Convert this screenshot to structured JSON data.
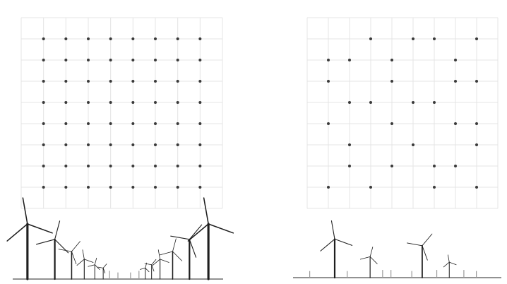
{
  "colors": {
    "background": "#ffffff",
    "grid": "#e4e4e4",
    "dot": "#3a3a3a",
    "turbine": "#1e1e1e",
    "ground": "#6f6f6f"
  },
  "panels": [
    {
      "id": "regular-layout",
      "grid_size": 9,
      "occupied_cells": [
        [
          1,
          1
        ],
        [
          2,
          1
        ],
        [
          3,
          1
        ],
        [
          4,
          1
        ],
        [
          5,
          1
        ],
        [
          6,
          1
        ],
        [
          7,
          1
        ],
        [
          8,
          1
        ],
        [
          1,
          2
        ],
        [
          2,
          2
        ],
        [
          3,
          2
        ],
        [
          4,
          2
        ],
        [
          5,
          2
        ],
        [
          6,
          2
        ],
        [
          7,
          2
        ],
        [
          8,
          2
        ],
        [
          1,
          3
        ],
        [
          2,
          3
        ],
        [
          3,
          3
        ],
        [
          4,
          3
        ],
        [
          5,
          3
        ],
        [
          6,
          3
        ],
        [
          7,
          3
        ],
        [
          8,
          3
        ],
        [
          1,
          4
        ],
        [
          2,
          4
        ],
        [
          3,
          4
        ],
        [
          4,
          4
        ],
        [
          5,
          4
        ],
        [
          6,
          4
        ],
        [
          7,
          4
        ],
        [
          8,
          4
        ],
        [
          1,
          5
        ],
        [
          2,
          5
        ],
        [
          3,
          5
        ],
        [
          4,
          5
        ],
        [
          5,
          5
        ],
        [
          6,
          5
        ],
        [
          7,
          5
        ],
        [
          8,
          5
        ],
        [
          1,
          6
        ],
        [
          2,
          6
        ],
        [
          3,
          6
        ],
        [
          4,
          6
        ],
        [
          5,
          6
        ],
        [
          6,
          6
        ],
        [
          7,
          6
        ],
        [
          8,
          6
        ],
        [
          1,
          7
        ],
        [
          2,
          7
        ],
        [
          3,
          7
        ],
        [
          4,
          7
        ],
        [
          5,
          7
        ],
        [
          6,
          7
        ],
        [
          7,
          7
        ],
        [
          8,
          7
        ],
        [
          1,
          8
        ],
        [
          2,
          8
        ],
        [
          3,
          8
        ],
        [
          4,
          8
        ],
        [
          5,
          8
        ],
        [
          6,
          8
        ],
        [
          7,
          8
        ],
        [
          8,
          8
        ]
      ],
      "turbine_count": 64
    },
    {
      "id": "sparse-layout",
      "grid_size": 9,
      "occupied_cells": [
        [
          3,
          1
        ],
        [
          5,
          1
        ],
        [
          6,
          1
        ],
        [
          8,
          1
        ],
        [
          1,
          2
        ],
        [
          2,
          2
        ],
        [
          4,
          2
        ],
        [
          7,
          2
        ],
        [
          1,
          3
        ],
        [
          4,
          3
        ],
        [
          7,
          3
        ],
        [
          8,
          3
        ],
        [
          2,
          4
        ],
        [
          3,
          4
        ],
        [
          5,
          4
        ],
        [
          6,
          4
        ],
        [
          1,
          5
        ],
        [
          4,
          5
        ],
        [
          7,
          5
        ],
        [
          8,
          5
        ],
        [
          2,
          6
        ],
        [
          5,
          6
        ],
        [
          8,
          6
        ],
        [
          2,
          7
        ],
        [
          4,
          7
        ],
        [
          6,
          7
        ],
        [
          7,
          7
        ],
        [
          1,
          8
        ],
        [
          3,
          8
        ],
        [
          6,
          8
        ],
        [
          8,
          8
        ]
      ],
      "turbine_count": 31
    }
  ],
  "side_views": [
    {
      "id": "regular-side-view",
      "turbines": [
        {
          "pos": 0.07,
          "scale": 1.0
        },
        {
          "pos": 0.2,
          "scale": 0.72
        },
        {
          "pos": 0.28,
          "scale": 0.5
        },
        {
          "pos": 0.34,
          "scale": 0.36
        },
        {
          "pos": 0.39,
          "scale": 0.26
        },
        {
          "pos": 0.43,
          "scale": 0.2
        },
        {
          "pos": 0.46,
          "scale": 0.15
        },
        {
          "pos": 0.5,
          "scale": 0.12
        },
        {
          "pos": 0.56,
          "scale": 0.12
        },
        {
          "pos": 0.6,
          "scale": 0.15
        },
        {
          "pos": 0.63,
          "scale": 0.2
        },
        {
          "pos": 0.66,
          "scale": 0.26
        },
        {
          "pos": 0.7,
          "scale": 0.36
        },
        {
          "pos": 0.76,
          "scale": 0.5
        },
        {
          "pos": 0.84,
          "scale": 0.72
        },
        {
          "pos": 0.93,
          "scale": 1.0
        }
      ]
    },
    {
      "id": "sparse-side-view",
      "turbines": [
        {
          "pos": 0.2,
          "scale": 0.7
        },
        {
          "pos": 0.37,
          "scale": 0.38
        },
        {
          "pos": 0.62,
          "scale": 0.58
        },
        {
          "pos": 0.75,
          "scale": 0.28
        },
        {
          "pos": 0.08,
          "scale": 0.12
        },
        {
          "pos": 0.26,
          "scale": 0.12
        },
        {
          "pos": 0.43,
          "scale": 0.14
        },
        {
          "pos": 0.47,
          "scale": 0.14
        },
        {
          "pos": 0.57,
          "scale": 0.12
        },
        {
          "pos": 0.69,
          "scale": 0.14
        },
        {
          "pos": 0.82,
          "scale": 0.14
        },
        {
          "pos": 0.88,
          "scale": 0.12
        }
      ]
    }
  ]
}
